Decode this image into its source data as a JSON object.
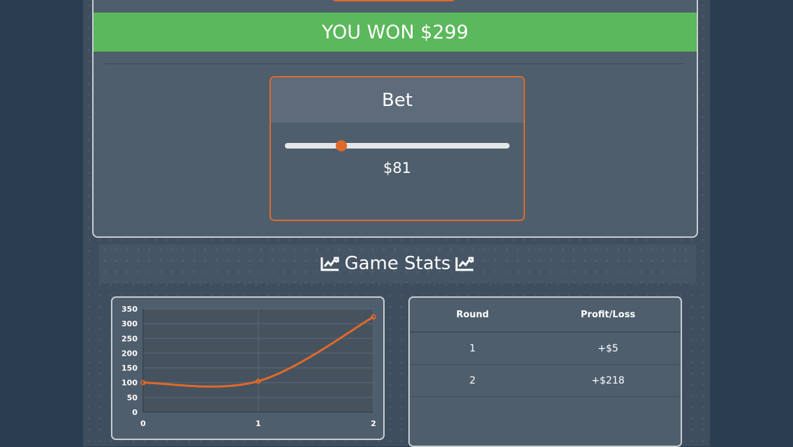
{
  "banner": {
    "text": "YOU WON $299"
  },
  "bet": {
    "title": "Bet",
    "amount": "$81",
    "slider_fraction": 0.25
  },
  "stats": {
    "title": "Game Stats"
  },
  "colors": {
    "accent": "#e0692a",
    "win": "#5cb85c",
    "panel": "#4f5e6d",
    "background": "#2b3d50"
  },
  "chart_data": {
    "type": "line",
    "x": [
      0,
      1,
      2
    ],
    "y": [
      100,
      105,
      323
    ],
    "xlim": [
      0,
      2
    ],
    "ylim": [
      0,
      350
    ],
    "yticks": [
      0,
      50,
      100,
      150,
      200,
      250,
      300,
      350
    ],
    "xticks": [
      0,
      1,
      2
    ],
    "color": "#e0692a",
    "grid": true,
    "smooth": true
  },
  "table": {
    "headers": [
      "Round",
      "Profit/Loss"
    ],
    "rows": [
      {
        "round": "1",
        "profit": "+$5"
      },
      {
        "round": "2",
        "profit": "+$218"
      }
    ]
  }
}
